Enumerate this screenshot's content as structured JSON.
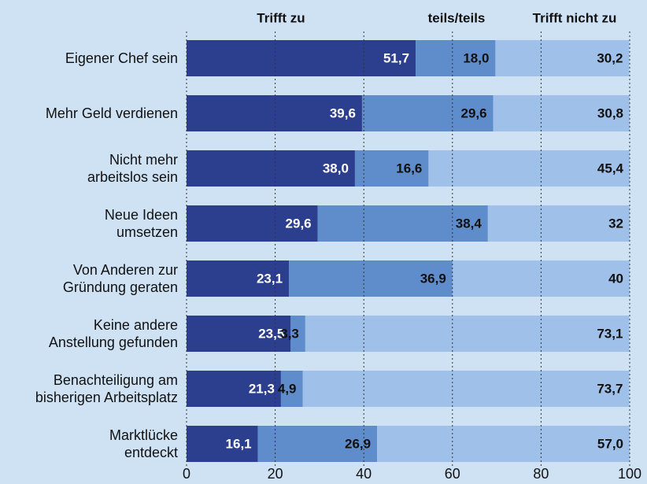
{
  "chart_data": {
    "type": "stacked-bar",
    "orientation": "horizontal",
    "categories": [
      "Eigener Chef sein",
      "Mehr Geld verdienen",
      "Nicht mehr\narbeitslos sein",
      "Neue Ideen\numsetzen",
      "Von Anderen zur\nGründung geraten",
      "Keine andere\nAnstellung gefunden",
      "Benachteiligung am\nbisherigen Arbeitsplatz",
      "Marktlücke\nentdeckt"
    ],
    "series": [
      {
        "name": "Trifft zu",
        "color": "#2b3f8e",
        "values": [
          51.7,
          39.6,
          38.0,
          29.6,
          23.1,
          23.5,
          21.3,
          16.1
        ],
        "value_labels": [
          "51,7",
          "39,6",
          "38,0",
          "29,6",
          "23,1",
          "23,5",
          "21,3",
          "16,1"
        ]
      },
      {
        "name": "teils/teils",
        "color": "#5f8dcc",
        "values": [
          18.0,
          29.6,
          16.6,
          38.4,
          36.9,
          3.3,
          4.9,
          26.9
        ],
        "value_labels": [
          "18,0",
          "29,6",
          "16,6",
          "38,4",
          "36,9",
          "3,3",
          "4,9",
          "26,9"
        ]
      },
      {
        "name": "Trifft nicht zu",
        "color": "#9fc0e8",
        "values": [
          30.2,
          30.8,
          45.4,
          32,
          40,
          73.1,
          73.7,
          57.0
        ],
        "value_labels": [
          "30,2",
          "30,8",
          "45,4",
          "32",
          "40",
          "73,1",
          "73,7",
          "57,0"
        ]
      }
    ],
    "xlim": [
      0,
      100
    ],
    "xticks": [
      0,
      20,
      40,
      60,
      80,
      100
    ],
    "grid": true
  }
}
